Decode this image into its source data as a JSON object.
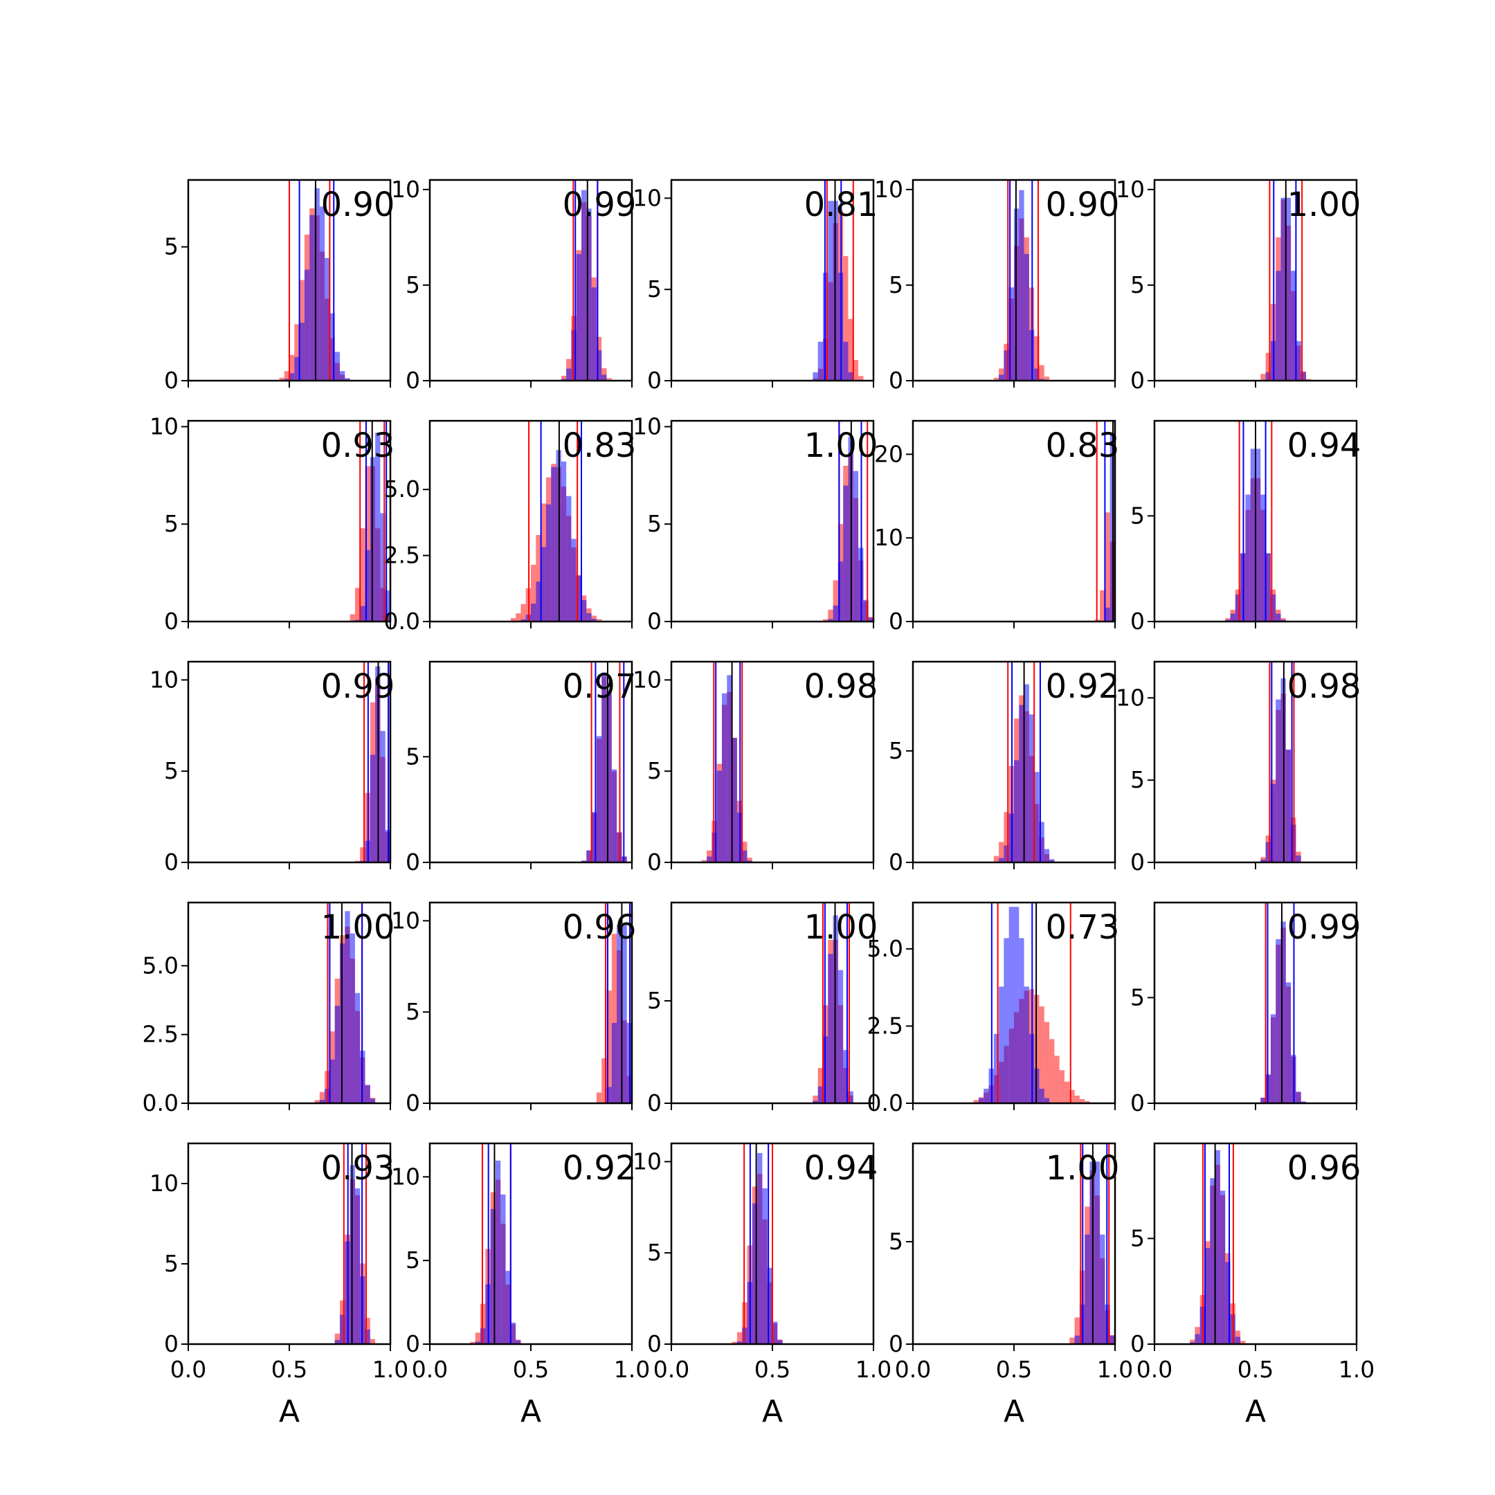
{
  "chart_data": {
    "type": "histogram-grid",
    "rows": 5,
    "cols": 5,
    "x_axis_label": "A",
    "xlim": [
      0,
      1
    ],
    "x_ticks": [
      "0.0",
      "0.5",
      "1.0"
    ],
    "colors": {
      "red": "#ff0000",
      "blue": "#0000ff",
      "purple": "#7b3fb8",
      "black": "#000000"
    },
    "bar_alpha": 0.5,
    "panels": [
      {
        "annotation": "0.90",
        "ylim": [
          0,
          7.5
        ],
        "y_ticks": [
          0,
          5
        ],
        "y_tick_labels": [
          "0",
          "5"
        ],
        "x_tick_labels_shown": false,
        "red": {
          "mean": 0.62,
          "sd": 0.055,
          "peak": 6.5,
          "ci": [
            0.5,
            0.7
          ]
        },
        "blue": {
          "mean": 0.64,
          "sd": 0.05,
          "peak": 7.2,
          "ci": [
            0.55,
            0.72
          ]
        },
        "truth": 0.63
      },
      {
        "annotation": "0.99",
        "ylim": [
          0,
          10.5
        ],
        "y_ticks": [
          0,
          5,
          10
        ],
        "y_tick_labels": [
          "0",
          "5",
          "10"
        ],
        "x_tick_labels_shown": false,
        "red": {
          "mean": 0.77,
          "sd": 0.04,
          "peak": 9.5,
          "ci": [
            0.71,
            0.83
          ]
        },
        "blue": {
          "mean": 0.77,
          "sd": 0.035,
          "peak": 10.2,
          "ci": [
            0.72,
            0.83
          ]
        },
        "truth": 0.78
      },
      {
        "annotation": "0.81",
        "ylim": [
          0,
          11
        ],
        "y_ticks": [
          0,
          5,
          10
        ],
        "y_tick_labels": [
          "0",
          "5",
          "10"
        ],
        "x_tick_labels_shown": false,
        "red": {
          "mean": 0.83,
          "sd": 0.04,
          "peak": 9.5,
          "ci": [
            0.77,
            0.9
          ]
        },
        "blue": {
          "mean": 0.8,
          "sd": 0.035,
          "peak": 10.5,
          "ci": [
            0.76,
            0.84
          ]
        },
        "truth": 0.81
      },
      {
        "annotation": "0.90",
        "ylim": [
          0,
          10.5
        ],
        "y_ticks": [
          0,
          5,
          10
        ],
        "y_tick_labels": [
          "0",
          "5",
          "10"
        ],
        "x_tick_labels_shown": false,
        "red": {
          "mean": 0.54,
          "sd": 0.045,
          "peak": 8.5,
          "ci": [
            0.47,
            0.62
          ]
        },
        "blue": {
          "mean": 0.53,
          "sd": 0.035,
          "peak": 10.2,
          "ci": [
            0.48,
            0.59
          ]
        },
        "truth": 0.51
      },
      {
        "annotation": "1.00",
        "ylim": [
          0,
          10.5
        ],
        "y_ticks": [
          0,
          5,
          10
        ],
        "y_tick_labels": [
          "0",
          "5",
          "10"
        ],
        "x_tick_labels_shown": false,
        "red": {
          "mean": 0.64,
          "sd": 0.04,
          "peak": 9.5,
          "ci": [
            0.57,
            0.73
          ]
        },
        "blue": {
          "mean": 0.65,
          "sd": 0.035,
          "peak": 10.2,
          "ci": [
            0.59,
            0.7
          ]
        },
        "truth": 0.65
      },
      {
        "annotation": "0.93",
        "ylim": [
          0,
          10.3
        ],
        "y_ticks": [
          0,
          5,
          10
        ],
        "y_tick_labels": [
          "0",
          "5",
          "10"
        ],
        "x_tick_labels_shown": false,
        "red": {
          "mean": 0.9,
          "sd": 0.035,
          "peak": 8.5,
          "ci": [
            0.85,
            0.97
          ]
        },
        "blue": {
          "mean": 0.93,
          "sd": 0.03,
          "peak": 10.0,
          "ci": [
            0.88,
            0.98
          ]
        },
        "truth": 0.91
      },
      {
        "annotation": "0.83",
        "ylim": [
          0,
          7.6
        ],
        "y_ticks": [
          0,
          2.5,
          5
        ],
        "y_tick_labels": [
          "0.0",
          "2.5",
          "5.0"
        ],
        "x_tick_labels_shown": false,
        "red": {
          "mean": 0.62,
          "sd": 0.075,
          "peak": 6.0,
          "ci": [
            0.49,
            0.73
          ]
        },
        "blue": {
          "mean": 0.64,
          "sd": 0.06,
          "peak": 6.5,
          "ci": [
            0.55,
            0.75
          ]
        },
        "truth": 0.64
      },
      {
        "annotation": "1.00",
        "ylim": [
          0,
          10.3
        ],
        "y_ticks": [
          0,
          5,
          10
        ],
        "y_tick_labels": [
          "0",
          "5",
          "10"
        ],
        "x_tick_labels_shown": false,
        "red": {
          "mean": 0.88,
          "sd": 0.04,
          "peak": 8.8,
          "ci": [
            0.83,
            0.97
          ]
        },
        "blue": {
          "mean": 0.89,
          "sd": 0.035,
          "peak": 9.5,
          "ci": [
            0.83,
            0.94
          ]
        },
        "truth": 0.89
      },
      {
        "annotation": "0.83",
        "ylim": [
          0,
          24
        ],
        "y_ticks": [
          0,
          10,
          20
        ],
        "y_tick_labels": [
          "0",
          "10",
          "20"
        ],
        "x_tick_labels_shown": false,
        "red": {
          "mean": 0.97,
          "sd": 0.02,
          "peak": 14,
          "ci": [
            0.91,
            0.99
          ]
        },
        "blue": {
          "mean": 0.99,
          "sd": 0.012,
          "peak": 23,
          "ci": [
            0.95,
            1.0
          ]
        },
        "truth": 0.99
      },
      {
        "annotation": "0.94",
        "ylim": [
          0,
          9.5
        ],
        "y_ticks": [
          0,
          5
        ],
        "y_tick_labels": [
          "0",
          "5"
        ],
        "x_tick_labels_shown": false,
        "red": {
          "mean": 0.5,
          "sd": 0.05,
          "peak": 7.0,
          "ci": [
            0.42,
            0.58
          ]
        },
        "blue": {
          "mean": 0.5,
          "sd": 0.045,
          "peak": 8.5,
          "ci": [
            0.44,
            0.55
          ]
        },
        "truth": 0.5
      },
      {
        "annotation": "0.99",
        "ylim": [
          0,
          11
        ],
        "y_ticks": [
          0,
          5,
          10
        ],
        "y_tick_labels": [
          "0",
          "5",
          "10"
        ],
        "x_tick_labels_shown": false,
        "red": {
          "mean": 0.93,
          "sd": 0.03,
          "peak": 10.4,
          "ci": [
            0.87,
            0.99
          ]
        },
        "blue": {
          "mean": 0.94,
          "sd": 0.025,
          "peak": 10.8,
          "ci": [
            0.89,
            0.99
          ]
        },
        "truth": 0.94
      },
      {
        "annotation": "0.97",
        "ylim": [
          0,
          9.5
        ],
        "y_ticks": [
          0,
          5
        ],
        "y_tick_labels": [
          "0",
          "5"
        ],
        "x_tick_labels_shown": false,
        "red": {
          "mean": 0.87,
          "sd": 0.035,
          "peak": 9.0,
          "ci": [
            0.8,
            0.94
          ]
        },
        "blue": {
          "mean": 0.87,
          "sd": 0.035,
          "peak": 9.2,
          "ci": [
            0.82,
            0.96
          ]
        },
        "truth": 0.88
      },
      {
        "annotation": "0.98",
        "ylim": [
          0,
          11
        ],
        "y_ticks": [
          0,
          5,
          10
        ],
        "y_tick_labels": [
          "0",
          "5",
          "10"
        ],
        "x_tick_labels_shown": false,
        "red": {
          "mean": 0.28,
          "sd": 0.04,
          "peak": 9.5,
          "ci": [
            0.21,
            0.35
          ]
        },
        "blue": {
          "mean": 0.28,
          "sd": 0.035,
          "peak": 10.5,
          "ci": [
            0.22,
            0.34
          ]
        },
        "truth": 0.3
      },
      {
        "annotation": "0.92",
        "ylim": [
          0,
          9
        ],
        "y_ticks": [
          0,
          5
        ],
        "y_tick_labels": [
          "0",
          "5"
        ],
        "x_tick_labels_shown": false,
        "red": {
          "mean": 0.54,
          "sd": 0.05,
          "peak": 7.5,
          "ci": [
            0.47,
            0.6
          ]
        },
        "blue": {
          "mean": 0.56,
          "sd": 0.045,
          "peak": 8.0,
          "ci": [
            0.49,
            0.63
          ]
        },
        "truth": 0.55
      },
      {
        "annotation": "0.98",
        "ylim": [
          0,
          12.2
        ],
        "y_ticks": [
          0,
          5,
          10
        ],
        "y_tick_labels": [
          "0",
          "5",
          "10"
        ],
        "x_tick_labels_shown": false,
        "red": {
          "mean": 0.63,
          "sd": 0.035,
          "peak": 10.5,
          "ci": [
            0.57,
            0.69
          ]
        },
        "blue": {
          "mean": 0.63,
          "sd": 0.032,
          "peak": 11.5,
          "ci": [
            0.58,
            0.68
          ]
        },
        "truth": 0.64
      },
      {
        "annotation": "1.00",
        "ylim": [
          0,
          7.3
        ],
        "y_ticks": [
          0,
          2.5,
          5
        ],
        "y_tick_labels": [
          "0.0",
          "2.5",
          "5.0"
        ],
        "x_tick_labels_shown": false,
        "red": {
          "mean": 0.78,
          "sd": 0.05,
          "peak": 6.5,
          "ci": [
            0.69,
            0.86
          ]
        },
        "blue": {
          "mean": 0.79,
          "sd": 0.045,
          "peak": 7.0,
          "ci": [
            0.7,
            0.86
          ]
        },
        "truth": 0.76
      },
      {
        "annotation": "0.96",
        "ylim": [
          0,
          11
        ],
        "y_ticks": [
          0,
          5,
          10
        ],
        "y_tick_labels": [
          "0",
          "5",
          "10"
        ],
        "x_tick_labels_shown": false,
        "red": {
          "mean": 0.92,
          "sd": 0.035,
          "peak": 9.5,
          "ci": [
            0.87,
            0.99
          ]
        },
        "blue": {
          "mean": 0.95,
          "sd": 0.028,
          "peak": 10.8,
          "ci": [
            0.88,
            0.99
          ]
        },
        "truth": 0.95
      },
      {
        "annotation": "1.00",
        "ylim": [
          0,
          9.8
        ],
        "y_ticks": [
          0,
          5
        ],
        "y_tick_labels": [
          "0",
          "5"
        ],
        "x_tick_labels_shown": false,
        "red": {
          "mean": 0.8,
          "sd": 0.035,
          "peak": 8.5,
          "ci": [
            0.75,
            0.88
          ]
        },
        "blue": {
          "mean": 0.81,
          "sd": 0.033,
          "peak": 9.2,
          "ci": [
            0.76,
            0.87
          ]
        },
        "truth": 0.81
      },
      {
        "annotation": "0.73",
        "ylim": [
          0,
          6.5
        ],
        "y_ticks": [
          0,
          2.5,
          5
        ],
        "y_tick_labels": [
          "0.0",
          "2.5",
          "5.0"
        ],
        "x_tick_labels_shown": false,
        "red": {
          "mean": 0.58,
          "sd": 0.1,
          "peak": 3.7,
          "ci": [
            0.42,
            0.78
          ]
        },
        "blue": {
          "mean": 0.5,
          "sd": 0.06,
          "peak": 6.5,
          "ci": [
            0.39,
            0.59
          ]
        },
        "truth": 0.61
      },
      {
        "annotation": "0.99",
        "ylim": [
          0,
          9.5
        ],
        "y_ticks": [
          0,
          5
        ],
        "y_tick_labels": [
          "0",
          "5"
        ],
        "x_tick_labels_shown": false,
        "red": {
          "mean": 0.63,
          "sd": 0.035,
          "peak": 8.5,
          "ci": [
            0.55,
            0.69
          ]
        },
        "blue": {
          "mean": 0.63,
          "sd": 0.035,
          "peak": 8.8,
          "ci": [
            0.56,
            0.69
          ]
        },
        "truth": 0.63
      },
      {
        "annotation": "0.93",
        "ylim": [
          0,
          12.5
        ],
        "y_ticks": [
          0,
          5,
          10
        ],
        "y_tick_labels": [
          "0",
          "5",
          "10"
        ],
        "x_tick_labels_shown": true,
        "red": {
          "mean": 0.82,
          "sd": 0.035,
          "peak": 10.5,
          "ci": [
            0.77,
            0.88
          ]
        },
        "blue": {
          "mean": 0.82,
          "sd": 0.03,
          "peak": 11.5,
          "ci": [
            0.79,
            0.86
          ]
        },
        "truth": 0.81
      },
      {
        "annotation": "0.92",
        "ylim": [
          0,
          12
        ],
        "y_ticks": [
          0,
          5,
          10
        ],
        "y_tick_labels": [
          "0",
          "5",
          "10"
        ],
        "x_tick_labels_shown": true,
        "red": {
          "mean": 0.33,
          "sd": 0.04,
          "peak": 10.0,
          "ci": [
            0.26,
            0.4
          ]
        },
        "blue": {
          "mean": 0.34,
          "sd": 0.035,
          "peak": 11.0,
          "ci": [
            0.29,
            0.4
          ]
        },
        "truth": 0.32
      },
      {
        "annotation": "0.94",
        "ylim": [
          0,
          11
        ],
        "y_ticks": [
          0,
          5,
          10
        ],
        "y_tick_labels": [
          "0",
          "5",
          "10"
        ],
        "x_tick_labels_shown": true,
        "red": {
          "mean": 0.43,
          "sd": 0.04,
          "peak": 9.5,
          "ci": [
            0.36,
            0.5
          ]
        },
        "blue": {
          "mean": 0.44,
          "sd": 0.035,
          "peak": 10.5,
          "ci": [
            0.39,
            0.48
          ]
        },
        "truth": 0.42
      },
      {
        "annotation": "1.00",
        "ylim": [
          0,
          9.8
        ],
        "y_ticks": [
          0,
          5
        ],
        "y_tick_labels": [
          "0",
          "5"
        ],
        "x_tick_labels_shown": true,
        "red": {
          "mean": 0.89,
          "sd": 0.04,
          "peak": 8.5,
          "ci": [
            0.83,
            0.97
          ]
        },
        "blue": {
          "mean": 0.9,
          "sd": 0.035,
          "peak": 9.5,
          "ci": [
            0.84,
            0.96
          ]
        },
        "truth": 0.89
      },
      {
        "annotation": "0.96",
        "ylim": [
          0,
          9.5
        ],
        "y_ticks": [
          0,
          5
        ],
        "y_tick_labels": [
          "0",
          "5"
        ],
        "x_tick_labels_shown": true,
        "red": {
          "mean": 0.31,
          "sd": 0.045,
          "peak": 8.5,
          "ci": [
            0.24,
            0.39
          ]
        },
        "blue": {
          "mean": 0.31,
          "sd": 0.04,
          "peak": 9.2,
          "ci": [
            0.25,
            0.37
          ]
        },
        "truth": 0.3
      }
    ]
  }
}
